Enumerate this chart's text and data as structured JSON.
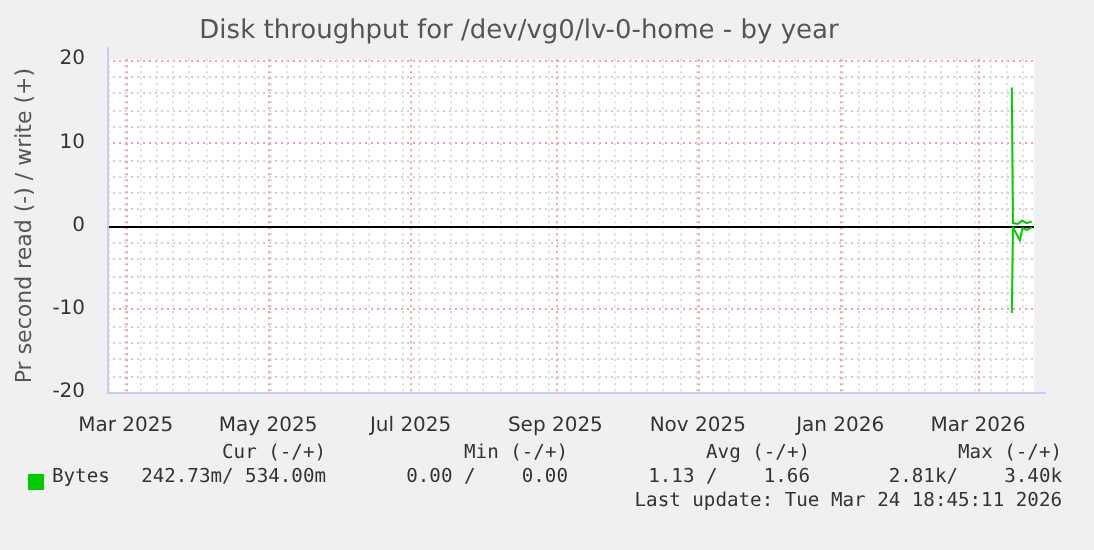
{
  "chart_data": {
    "type": "line",
    "title": "Disk throughput for /dev/vg0/lv-0-home - by year",
    "ylabel": "Pr second read (-) / write (+)",
    "series": [
      {
        "name": "Bytes",
        "color": "#00cc00",
        "x": [
          "2026-03-15T12:00",
          "2026-03-16",
          "2026-03-18",
          "2026-03-20",
          "2026-03-22",
          "2026-03-24"
        ],
        "values": [
          16.6,
          0.3,
          0.2,
          0.6,
          0.3,
          0.5
        ]
      },
      {
        "color": "#00cc00",
        "x": [
          "2026-03-15T12:00",
          "2026-03-16",
          "2026-03-19",
          "2026-03-20",
          "2026-03-22",
          "2026-03-24"
        ],
        "values": [
          -10.5,
          -0.2,
          -1.8,
          -0.3,
          -0.5,
          -0.2
        ]
      }
    ],
    "xlim": [
      "2025-02-21",
      "2026-03-25"
    ],
    "xticks": [
      {
        "value": "2025-03-01",
        "label": "Mar 2025"
      },
      {
        "value": "2025-05-01",
        "label": "May 2025"
      },
      {
        "value": "2025-07-01",
        "label": "Jul 2025"
      },
      {
        "value": "2025-09-01",
        "label": "Sep 2025"
      },
      {
        "value": "2025-11-01",
        "label": "Nov 2025"
      },
      {
        "value": "2026-01-01",
        "label": "Jan 2026"
      },
      {
        "value": "2026-03-01",
        "label": "Mar 2026"
      }
    ],
    "ylim": [
      -20,
      20
    ],
    "yticks": [
      -20,
      -10,
      0,
      10,
      20
    ],
    "ref_lines": [
      {
        "axis": "y",
        "value": 0,
        "color": "#000000"
      }
    ],
    "grid": true,
    "legend": "bottom",
    "marker": "none",
    "line_style": "solid",
    "annotations": [
      "Cur (-/+)",
      "Min (-/+)",
      "Avg (-/+)",
      "Max (-/+)",
      "242.73m/ 534.00m",
      "0.00 /    0.00",
      "1.13 /    1.66",
      "2.81k/    3.40k",
      "Last update: Tue Mar 24 18:45:11 2026"
    ]
  }
}
